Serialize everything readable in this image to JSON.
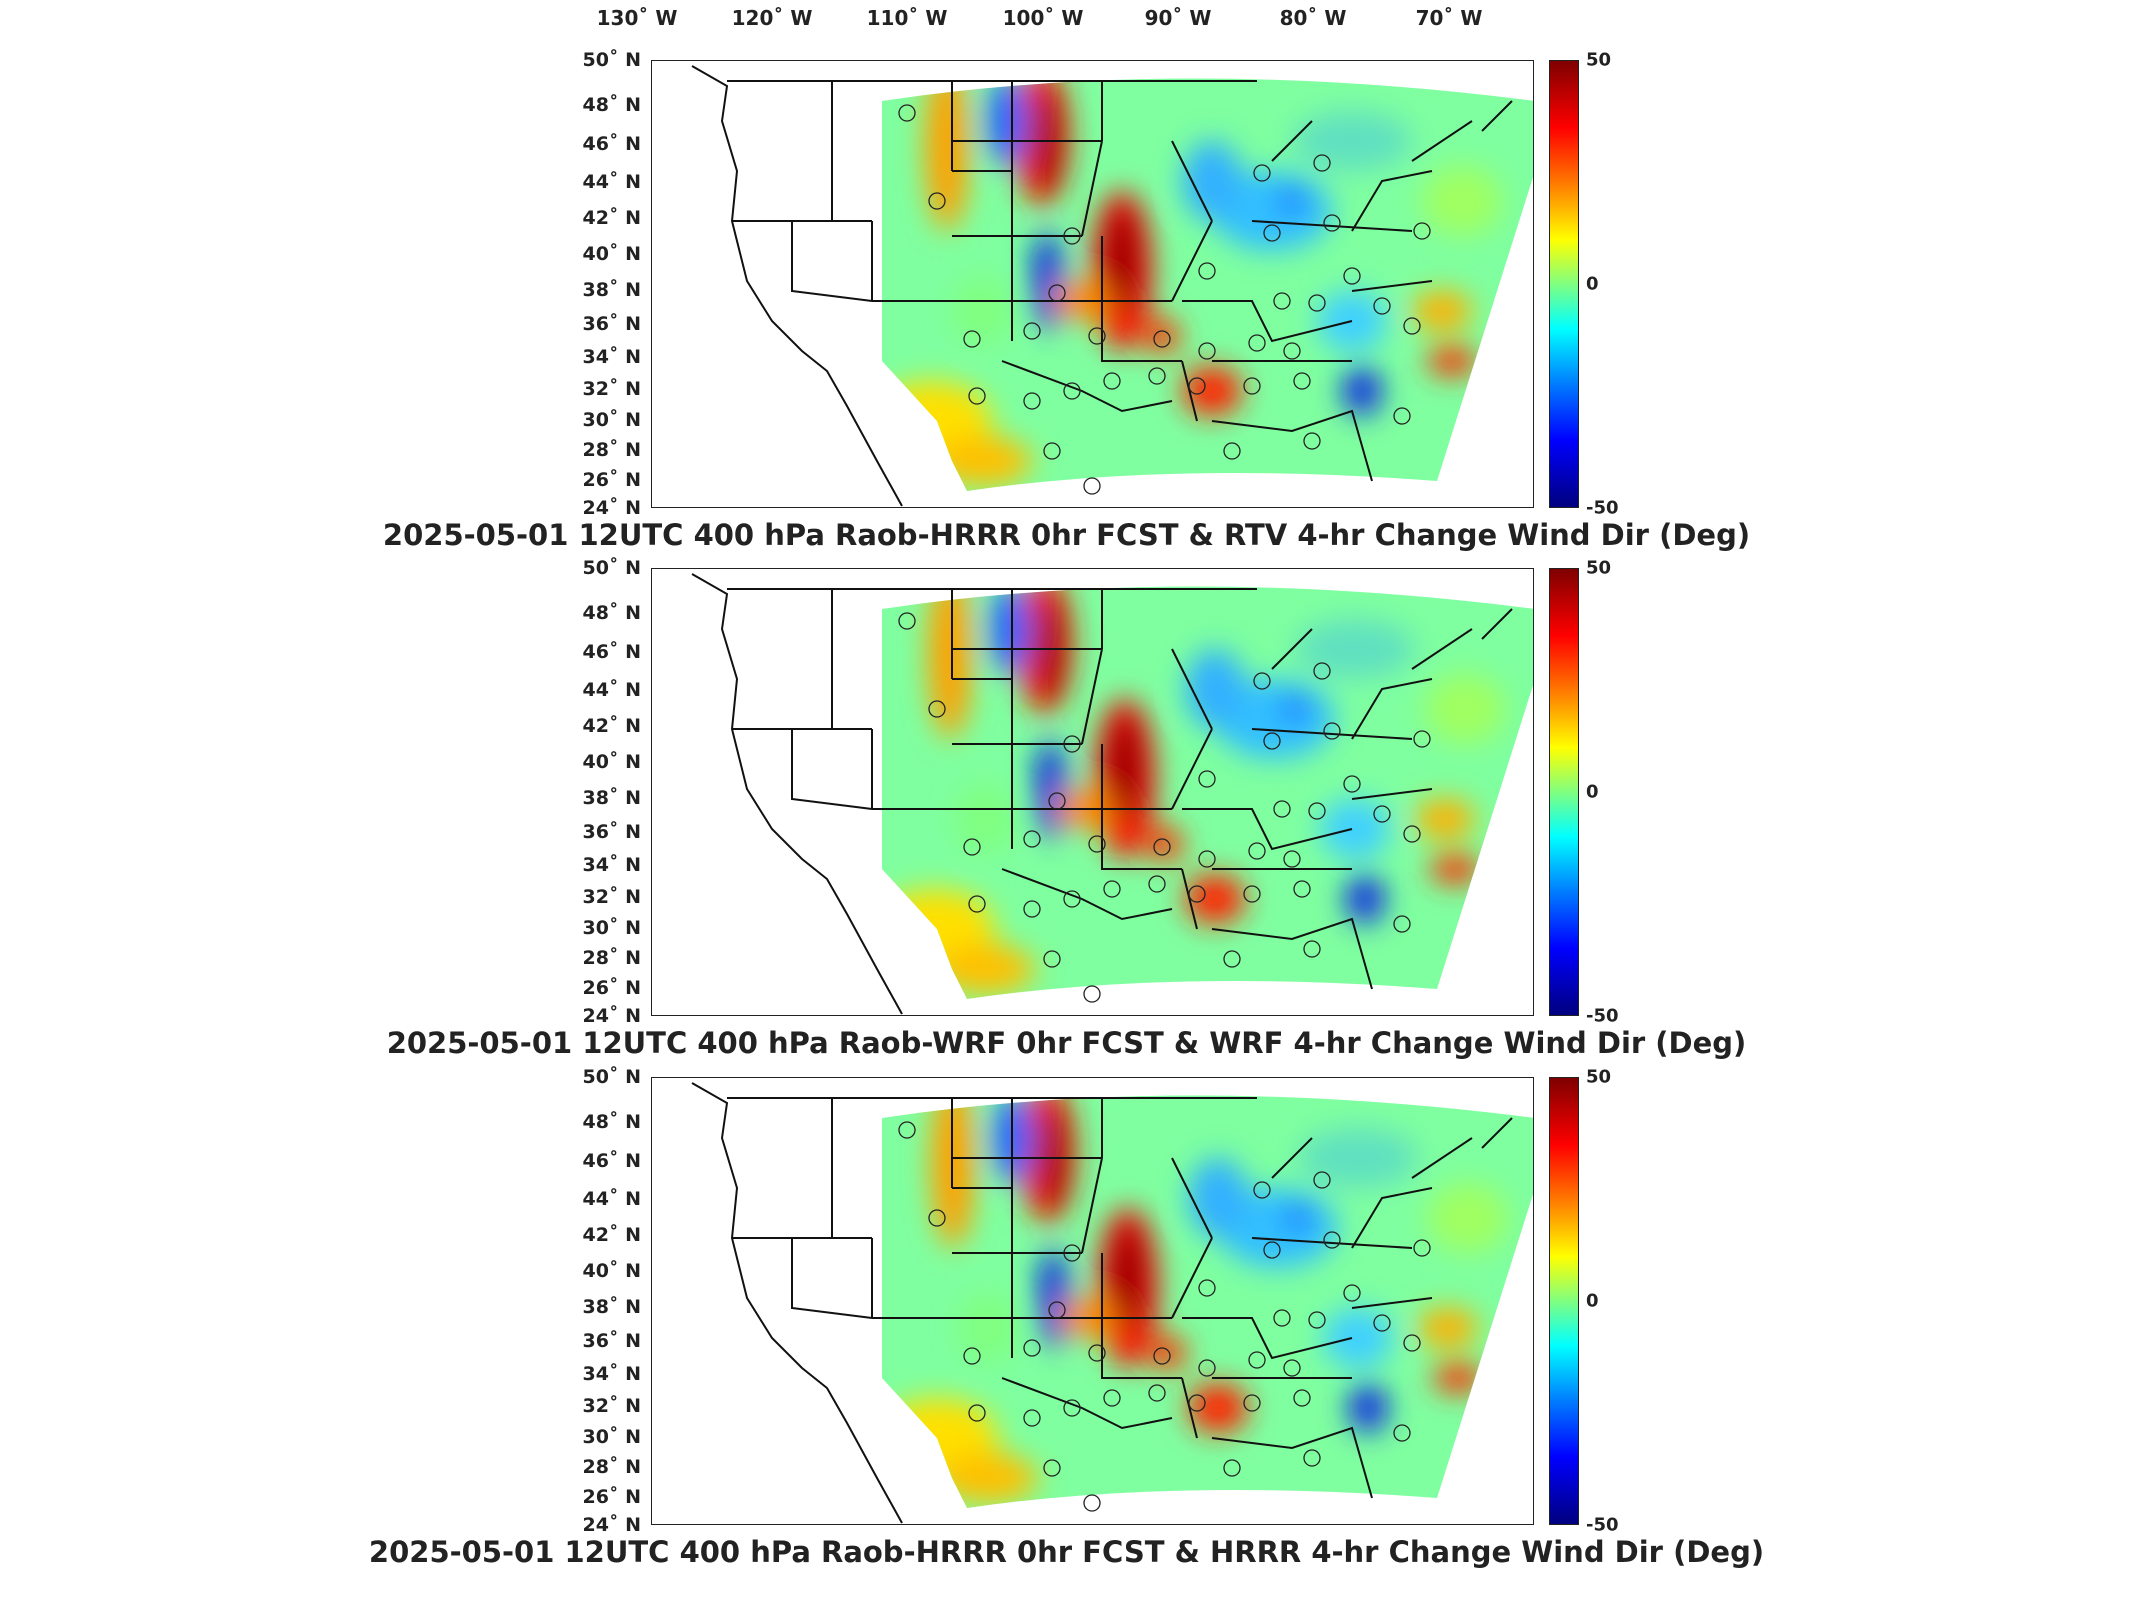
{
  "lon_ticks": [
    "130˚ W",
    "120˚ W",
    "110˚ W",
    "100˚ W",
    "90˚ W",
    "80˚ W",
    "70˚ W"
  ],
  "lat_ticks": [
    "50˚ N",
    "48˚ N",
    "46˚ N",
    "44˚ N",
    "42˚ N",
    "40˚ N",
    "38˚ N",
    "36˚ N",
    "34˚ N",
    "32˚ N",
    "30˚ N",
    "28˚ N",
    "26˚ N",
    "24˚ N"
  ],
  "colorbar": {
    "max_label": "50",
    "mid_label": "0",
    "min_label": "-50",
    "colormap": "jet",
    "colors": [
      "#7f0000",
      "#ff0000",
      "#ff8000",
      "#ffff00",
      "#80ff80",
      "#00ffff",
      "#0080ff",
      "#0000ff",
      "#00007f"
    ]
  },
  "panels": [
    {
      "title": "2025-05-01 12UTC 400 hPa Raob-HRRR 0hr FCST & RTV 4-hr Change Wind Dir (Deg)"
    },
    {
      "title": "2025-05-01 12UTC 400 hPa Raob-WRF 0hr FCST & WRF 4-hr Change Wind Dir (Deg)"
    },
    {
      "title": "2025-05-01 12UTC 400 hPa Raob-HRRR 0hr FCST & HRRR 4-hr Change Wind Dir (Deg)"
    }
  ]
}
